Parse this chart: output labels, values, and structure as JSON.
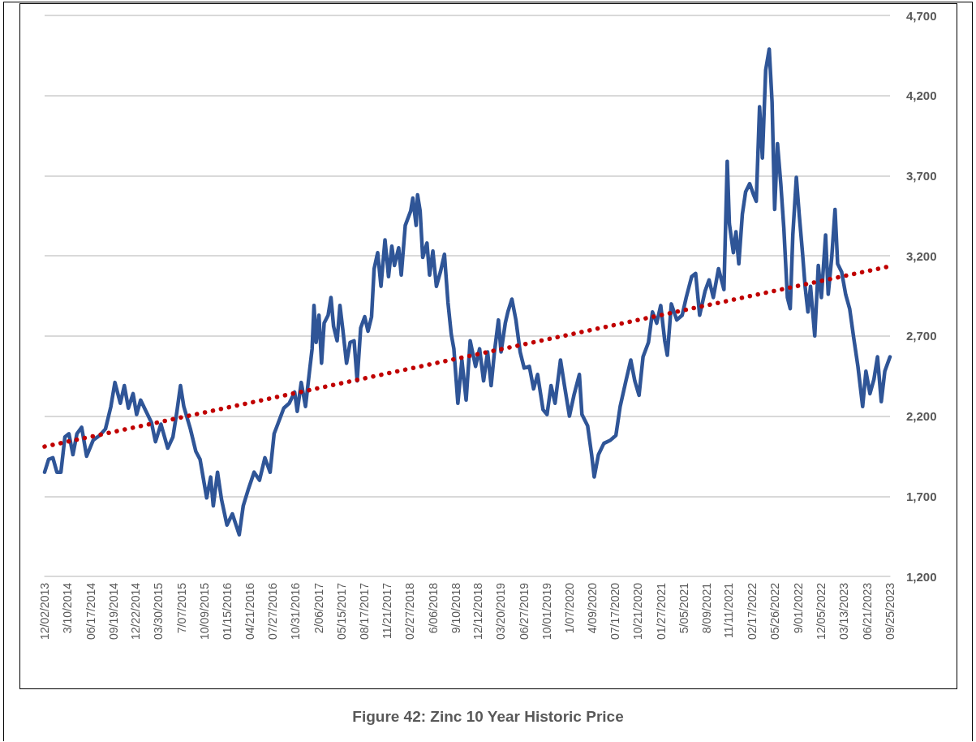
{
  "chart_data": {
    "type": "line",
    "title": "Figure 42: Zinc 10 Year Historic Price",
    "xlim": [
      "2013-12-02",
      "2023-09-25"
    ],
    "xticks": [
      {
        "value": "2013-12-02",
        "label": "12/02/2013"
      },
      {
        "value": "2014-03-10",
        "label": "3/10/2014"
      },
      {
        "value": "2014-06-17",
        "label": "06/17/2014"
      },
      {
        "value": "2014-09-19",
        "label": "09/19/2014"
      },
      {
        "value": "2014-12-22",
        "label": "12/22/2014"
      },
      {
        "value": "2015-03-30",
        "label": "03/30/2015"
      },
      {
        "value": "2015-07-07",
        "label": "7/07/2015"
      },
      {
        "value": "2015-10-09",
        "label": "10/09/2015"
      },
      {
        "value": "2016-01-15",
        "label": "01/15/2016"
      },
      {
        "value": "2016-04-21",
        "label": "04/21/2016"
      },
      {
        "value": "2016-07-27",
        "label": "07/27/2016"
      },
      {
        "value": "2016-10-31",
        "label": "10/31/2016"
      },
      {
        "value": "2017-02-06",
        "label": "2/06/2017"
      },
      {
        "value": "2017-05-15",
        "label": "05/15/2017"
      },
      {
        "value": "2017-08-17",
        "label": "08/17/2017"
      },
      {
        "value": "2017-11-21",
        "label": "11/21/2017"
      },
      {
        "value": "2018-02-27",
        "label": "02/27/2018"
      },
      {
        "value": "2018-06-06",
        "label": "6/06/2018"
      },
      {
        "value": "2018-09-10",
        "label": "9/10/2018"
      },
      {
        "value": "2018-12-12",
        "label": "12/12/2018"
      },
      {
        "value": "2019-03-20",
        "label": "03/20/2019"
      },
      {
        "value": "2019-06-27",
        "label": "06/27/2019"
      },
      {
        "value": "2019-10-01",
        "label": "10/01/2019"
      },
      {
        "value": "2020-01-07",
        "label": "1/07/2020"
      },
      {
        "value": "2020-04-09",
        "label": "4/09/2020"
      },
      {
        "value": "2020-07-17",
        "label": "07/17/2020"
      },
      {
        "value": "2020-10-21",
        "label": "10/21/2020"
      },
      {
        "value": "2021-01-27",
        "label": "01/27/2021"
      },
      {
        "value": "2021-05-05",
        "label": "5/05/2021"
      },
      {
        "value": "2021-08-09",
        "label": "8/09/2021"
      },
      {
        "value": "2021-11-11",
        "label": "11/11/2021"
      },
      {
        "value": "2022-02-17",
        "label": "02/17/2022"
      },
      {
        "value": "2022-05-26",
        "label": "05/26/2022"
      },
      {
        "value": "2022-09-01",
        "label": "9/01/2022"
      },
      {
        "value": "2022-12-05",
        "label": "12/05/2022"
      },
      {
        "value": "2023-03-13",
        "label": "03/13/2023"
      },
      {
        "value": "2023-06-21",
        "label": "06/21/2023"
      },
      {
        "value": "2023-09-25",
        "label": "09/25/2023"
      }
    ],
    "ylim": [
      1200,
      4700
    ],
    "yticks": [
      {
        "value": 1200,
        "label": "1,200"
      },
      {
        "value": 1700,
        "label": "1,700"
      },
      {
        "value": 2200,
        "label": "2,200"
      },
      {
        "value": 2700,
        "label": "2,700"
      },
      {
        "value": 3200,
        "label": "3,200"
      },
      {
        "value": 3700,
        "label": "3,700"
      },
      {
        "value": 4200,
        "label": "4,200"
      },
      {
        "value": 4700,
        "label": "4,700"
      }
    ],
    "grid": "y",
    "marker": "none",
    "series": [
      {
        "color": "#2f5597",
        "line_style": "solid",
        "x": [
          "2013-12-02",
          "2013-12-19",
          "2014-01-06",
          "2014-01-23",
          "2014-02-09",
          "2014-02-26",
          "2014-03-15",
          "2014-04-01",
          "2014-04-18",
          "2014-05-08",
          "2014-05-29",
          "2014-06-26",
          "2014-07-24",
          "2014-08-17",
          "2014-09-09",
          "2014-09-26",
          "2014-10-19",
          "2014-11-05",
          "2014-11-22",
          "2014-12-12",
          "2014-12-27",
          "2015-01-13",
          "2015-02-05",
          "2015-02-28",
          "2015-03-17",
          "2015-04-09",
          "2015-05-08",
          "2015-05-30",
          "2015-06-16",
          "2015-07-01",
          "2015-07-15",
          "2015-08-12",
          "2015-09-04",
          "2015-09-22",
          "2015-10-20",
          "2015-11-06",
          "2015-11-17",
          "2015-12-05",
          "2015-12-22",
          "2016-01-14",
          "2016-02-06",
          "2016-03-06",
          "2016-03-23",
          "2016-04-15",
          "2016-05-08",
          "2016-05-31",
          "2016-06-23",
          "2016-07-15",
          "2016-08-01",
          "2016-08-19",
          "2016-09-11",
          "2016-10-04",
          "2016-10-27",
          "2016-11-07",
          "2016-11-24",
          "2016-12-12",
          "2016-12-29",
          "2017-01-09",
          "2017-01-17",
          "2017-01-26",
          "2017-02-07",
          "2017-02-18",
          "2017-03-01",
          "2017-03-18",
          "2017-03-30",
          "2017-04-10",
          "2017-04-25",
          "2017-05-07",
          "2017-05-20",
          "2017-06-04",
          "2017-06-19",
          "2017-07-06",
          "2017-07-19",
          "2017-08-03",
          "2017-08-20",
          "2017-09-03",
          "2017-09-18",
          "2017-09-29",
          "2017-10-14",
          "2017-10-28",
          "2017-11-14",
          "2017-11-29",
          "2017-12-13",
          "2017-12-24",
          "2018-01-11",
          "2018-01-22",
          "2018-02-08",
          "2018-03-03",
          "2018-03-12",
          "2018-03-26",
          "2018-04-01",
          "2018-04-12",
          "2018-04-23",
          "2018-05-11",
          "2018-05-22",
          "2018-06-05",
          "2018-06-20",
          "2018-07-07",
          "2018-07-24",
          "2018-08-08",
          "2018-08-22",
          "2018-09-02",
          "2018-09-19",
          "2018-10-06",
          "2018-10-24",
          "2018-11-10",
          "2018-12-03",
          "2018-12-20",
          "2019-01-06",
          "2019-01-23",
          "2019-02-07",
          "2019-02-21",
          "2019-03-10",
          "2019-03-21",
          "2019-04-08",
          "2019-04-19",
          "2019-05-06",
          "2019-05-23",
          "2019-06-10",
          "2019-06-27",
          "2019-07-19",
          "2019-08-06",
          "2019-08-23",
          "2019-09-15",
          "2019-10-02",
          "2019-10-19",
          "2019-11-05",
          "2019-11-28",
          "2019-12-15",
          "2020-01-05",
          "2020-01-24",
          "2020-02-16",
          "2020-02-27",
          "2020-03-22",
          "2020-04-08",
          "2020-04-19",
          "2020-05-07",
          "2020-05-30",
          "2020-06-27",
          "2020-07-20",
          "2020-08-07",
          "2020-08-30",
          "2020-09-21",
          "2020-10-08",
          "2020-10-26",
          "2020-11-12",
          "2020-12-05",
          "2020-12-22",
          "2021-01-09",
          "2021-01-26",
          "2021-02-12",
          "2021-02-23",
          "2021-03-12",
          "2021-04-04",
          "2021-04-27",
          "2021-05-14",
          "2021-06-06",
          "2021-06-23",
          "2021-07-10",
          "2021-08-02",
          "2021-08-19",
          "2021-09-06",
          "2021-09-28",
          "2021-10-21",
          "2021-11-04",
          "2021-11-13",
          "2021-11-30",
          "2021-12-11",
          "2021-12-23",
          "2022-01-07",
          "2022-01-21",
          "2022-02-07",
          "2022-02-24",
          "2022-03-07",
          "2022-03-21",
          "2022-04-02",
          "2022-04-16",
          "2022-05-01",
          "2022-05-13",
          "2022-05-24",
          "2022-06-05",
          "2022-06-19",
          "2022-07-02",
          "2022-07-17",
          "2022-07-29",
          "2022-08-09",
          "2022-08-24",
          "2022-09-05",
          "2022-09-19",
          "2022-09-30",
          "2022-10-12",
          "2022-10-23",
          "2022-11-10",
          "2022-11-25",
          "2022-12-08",
          "2022-12-26",
          "2023-01-06",
          "2023-01-21",
          "2023-02-04",
          "2023-02-15",
          "2023-03-04",
          "2023-03-21",
          "2023-04-07",
          "2023-04-24",
          "2023-05-12",
          "2023-06-01",
          "2023-06-15",
          "2023-07-02",
          "2023-07-19",
          "2023-08-03",
          "2023-08-19",
          "2023-09-03",
          "2023-09-25"
        ],
        "values": [
          1850,
          1930,
          1940,
          1850,
          1850,
          2070,
          2090,
          1960,
          2090,
          2130,
          1950,
          2050,
          2080,
          2120,
          2260,
          2410,
          2280,
          2390,
          2250,
          2340,
          2210,
          2300,
          2230,
          2160,
          2040,
          2150,
          2000,
          2070,
          2230,
          2390,
          2260,
          2120,
          1980,
          1930,
          1690,
          1820,
          1640,
          1850,
          1680,
          1520,
          1590,
          1460,
          1640,
          1750,
          1850,
          1800,
          1940,
          1850,
          2090,
          2160,
          2250,
          2280,
          2350,
          2230,
          2410,
          2260,
          2480,
          2620,
          2890,
          2660,
          2830,
          2530,
          2780,
          2830,
          2940,
          2760,
          2670,
          2890,
          2730,
          2530,
          2660,
          2670,
          2420,
          2750,
          2820,
          2730,
          2820,
          3120,
          3220,
          3010,
          3300,
          3070,
          3260,
          3140,
          3250,
          3080,
          3390,
          3480,
          3560,
          3390,
          3580,
          3480,
          3190,
          3280,
          3080,
          3230,
          3010,
          3100,
          3210,
          2910,
          2710,
          2620,
          2280,
          2550,
          2300,
          2670,
          2510,
          2620,
          2420,
          2600,
          2390,
          2600,
          2800,
          2600,
          2780,
          2850,
          2930,
          2800,
          2600,
          2500,
          2510,
          2370,
          2460,
          2240,
          2210,
          2390,
          2280,
          2550,
          2390,
          2200,
          2330,
          2460,
          2210,
          2140,
          1960,
          1820,
          1960,
          2030,
          2050,
          2080,
          2260,
          2410,
          2550,
          2420,
          2330,
          2570,
          2660,
          2850,
          2780,
          2890,
          2670,
          2580,
          2900,
          2800,
          2830,
          2940,
          3070,
          3090,
          2830,
          2980,
          3050,
          2940,
          3120,
          2990,
          3790,
          3400,
          3220,
          3350,
          3150,
          3460,
          3600,
          3650,
          3580,
          3540,
          4130,
          3810,
          4360,
          4490,
          4160,
          3490,
          3900,
          3650,
          3370,
          2940,
          2870,
          3330,
          3690,
          3460,
          3220,
          3010,
          2850,
          3010,
          2700,
          3140,
          2940,
          3330,
          2960,
          3190,
          3490,
          3150,
          3100,
          2960,
          2870,
          2690,
          2510,
          2260,
          2480,
          2340,
          2430,
          2570,
          2290,
          2480,
          2570
        ]
      },
      {
        "color": "#c00000",
        "line_style": "dotted",
        "x": [
          "2013-12-02",
          "2023-09-25"
        ],
        "values": [
          2010,
          3135
        ]
      }
    ]
  }
}
